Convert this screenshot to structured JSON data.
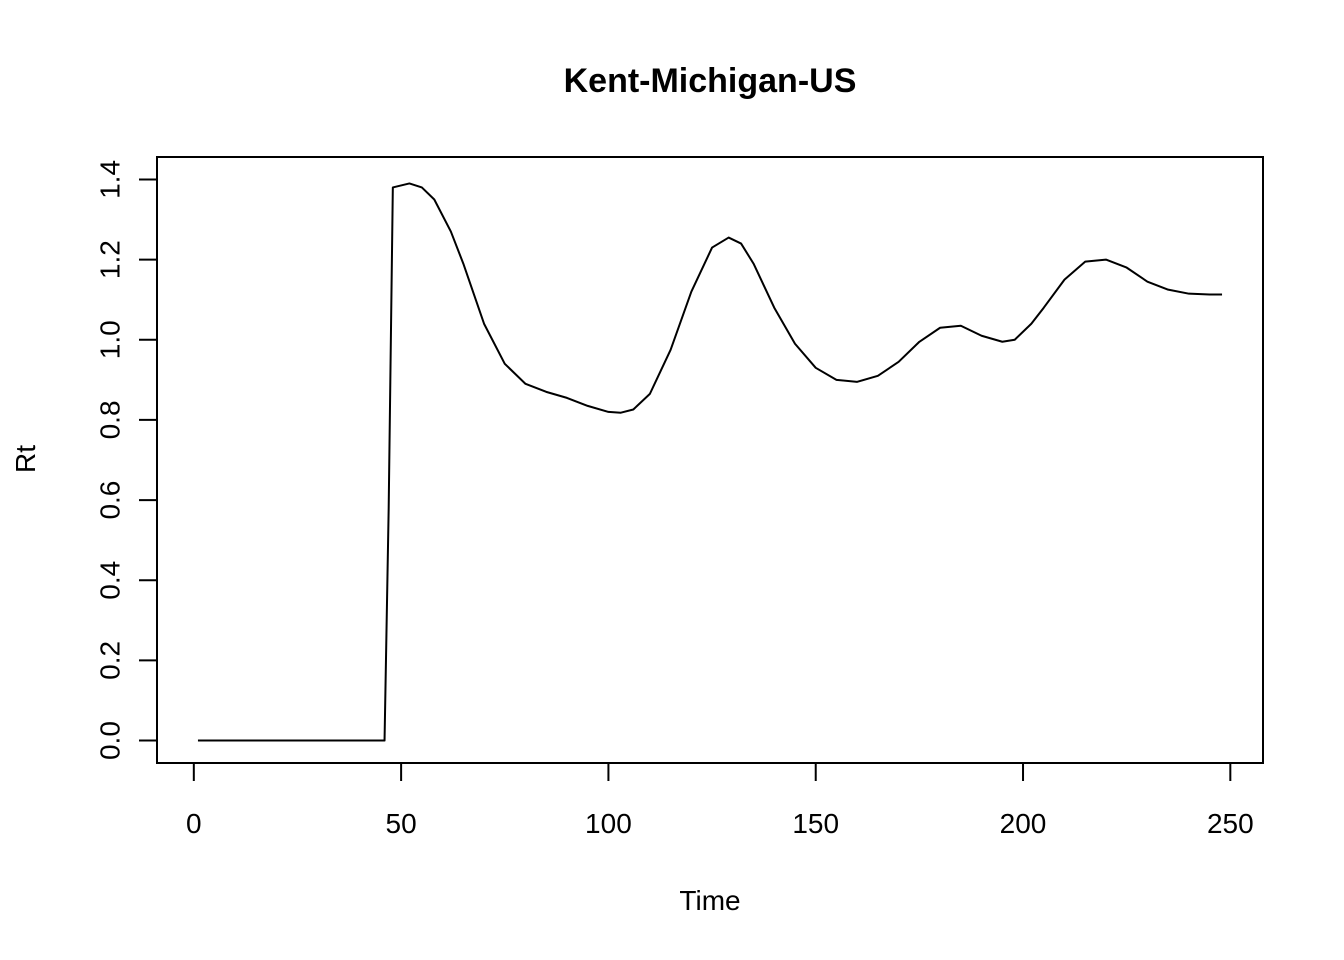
{
  "chart_data": {
    "type": "line",
    "title": "Kent-Michigan-US",
    "xlabel": "Time",
    "ylabel": "Rt",
    "xlim": [
      1,
      248
    ],
    "ylim": [
      0,
      1.4
    ],
    "x_ticks": [
      "0",
      "50",
      "100",
      "150",
      "200",
      "250"
    ],
    "y_ticks": [
      "0.0",
      "0.2",
      "0.4",
      "0.6",
      "0.8",
      "1.0",
      "1.2",
      "1.4"
    ],
    "grid": false,
    "legend": "none",
    "series": [
      {
        "color": "#000000",
        "x": [
          1,
          10,
          20,
          30,
          40,
          46,
          47,
          48,
          52,
          55,
          58,
          62,
          65,
          70,
          75,
          80,
          85,
          90,
          95,
          100,
          103,
          106,
          110,
          115,
          120,
          125,
          129,
          132,
          135,
          140,
          145,
          150,
          155,
          160,
          165,
          170,
          175,
          180,
          185,
          190,
          195,
          198,
          202,
          205,
          210,
          215,
          220,
          225,
          230,
          235,
          240,
          245,
          248
        ],
        "y": [
          0,
          0,
          0,
          0,
          0,
          0,
          0.58,
          1.38,
          1.39,
          1.38,
          1.35,
          1.27,
          1.19,
          1.04,
          0.94,
          0.89,
          0.87,
          0.855,
          0.835,
          0.82,
          0.818,
          0.826,
          0.865,
          0.975,
          1.12,
          1.23,
          1.255,
          1.24,
          1.19,
          1.08,
          0.99,
          0.93,
          0.9,
          0.895,
          0.91,
          0.945,
          0.995,
          1.03,
          1.035,
          1.01,
          0.995,
          1.0,
          1.04,
          1.08,
          1.15,
          1.195,
          1.2,
          1.18,
          1.145,
          1.125,
          1.115,
          1.113,
          1.113
        ]
      }
    ]
  }
}
